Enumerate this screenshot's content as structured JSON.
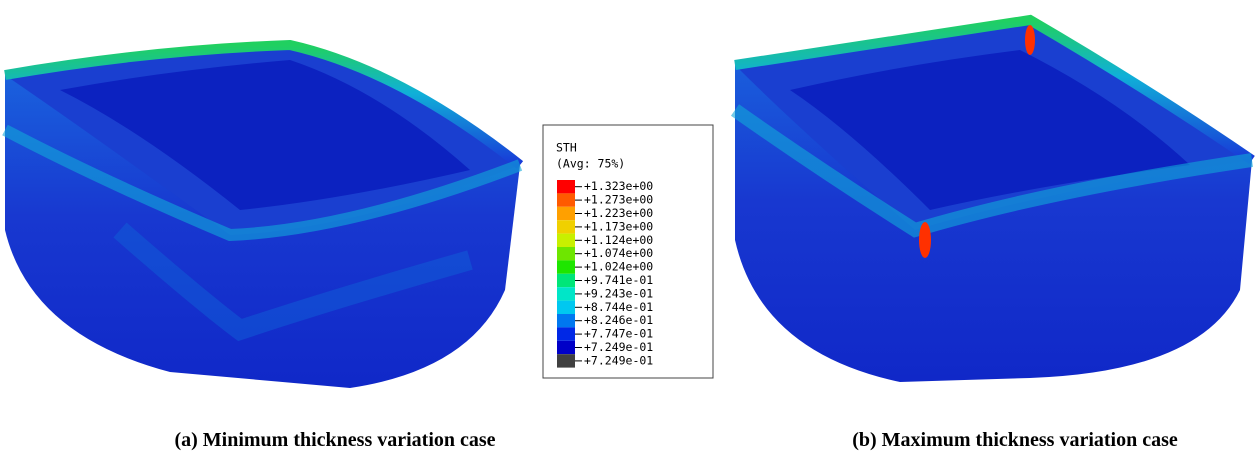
{
  "legend": {
    "title": "STH",
    "subtitle": "(Avg: 75%)",
    "entries": [
      {
        "label": "+1.323e+00",
        "color": "#ff0000"
      },
      {
        "label": "+1.273e+00",
        "color": "#ff5a00"
      },
      {
        "label": "+1.223e+00",
        "color": "#ffa000"
      },
      {
        "label": "+1.173e+00",
        "color": "#f0d000"
      },
      {
        "label": "+1.124e+00",
        "color": "#c8f000"
      },
      {
        "label": "+1.074e+00",
        "color": "#6ee600"
      },
      {
        "label": "+1.024e+00",
        "color": "#1ee600"
      },
      {
        "label": "+9.741e-01",
        "color": "#00e678"
      },
      {
        "label": "+9.243e-01",
        "color": "#00e6c8"
      },
      {
        "label": "+8.744e-01",
        "color": "#00c8f0"
      },
      {
        "label": "+8.246e-01",
        "color": "#0078f0"
      },
      {
        "label": "+7.747e-01",
        "color": "#0028e6"
      },
      {
        "label": "+7.249e-01",
        "color": "#0000c8"
      },
      {
        "label": "+7.249e-01",
        "color": "#404040"
      }
    ]
  },
  "captions": [
    "(a)  Minimum thickness variation case",
    "(b) Maximum thickness variation case"
  ]
}
